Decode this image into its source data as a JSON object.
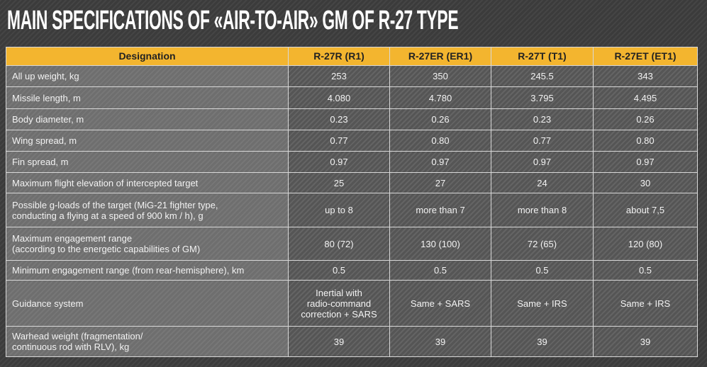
{
  "title": "MAIN SPECIFICATIONS OF «AIR-TO-AIR» GM OF R-27 TYPE",
  "table": {
    "header": [
      "Designation",
      "R-27R (R1)",
      "R-27ER (ER1)",
      "R-27T (T1)",
      "R-27ET (ET1)"
    ],
    "rows": [
      [
        "All up weight, kg",
        "253",
        "350",
        "245.5",
        "343"
      ],
      [
        "Missile length, m",
        "4.080",
        "4.780",
        "3.795",
        "4.495"
      ],
      [
        "Body diameter, m",
        "0.23",
        "0.26",
        "0.23",
        "0.26"
      ],
      [
        "Wing spread, m",
        "0.77",
        "0.80",
        "0.77",
        "0.80"
      ],
      [
        "Fin spread, m",
        "0.97",
        "0.97",
        "0.97",
        "0.97"
      ],
      [
        "Maximum flight elevation of intercepted target",
        "25",
        "27",
        "24",
        "30"
      ],
      [
        "Possible g-loads of the target (MiG-21 fighter type,\nconducting a flying at a speed of 900 km / h), g",
        "up to 8",
        "more than 7",
        "more than 8",
        "about 7,5"
      ],
      [
        "Maximum  engagement range\n(according to the energetic capabilities of GM)",
        "80 (72)",
        "130 (100)",
        "72 (65)",
        "120 (80)"
      ],
      [
        "Minimum engagement range (from rear-hemisphere), km",
        "0.5",
        "0.5",
        "0.5",
        "0.5"
      ],
      [
        "Guidance system",
        "Inertial with\nradio-command\ncorrection + SARS",
        "Same + SARS",
        "Same + IRS",
        "Same + IRS"
      ],
      [
        "Warhead weight (fragmentation/\ncontinuous rod with RLV), kg",
        "39",
        "39",
        "39",
        "39"
      ]
    ]
  }
}
